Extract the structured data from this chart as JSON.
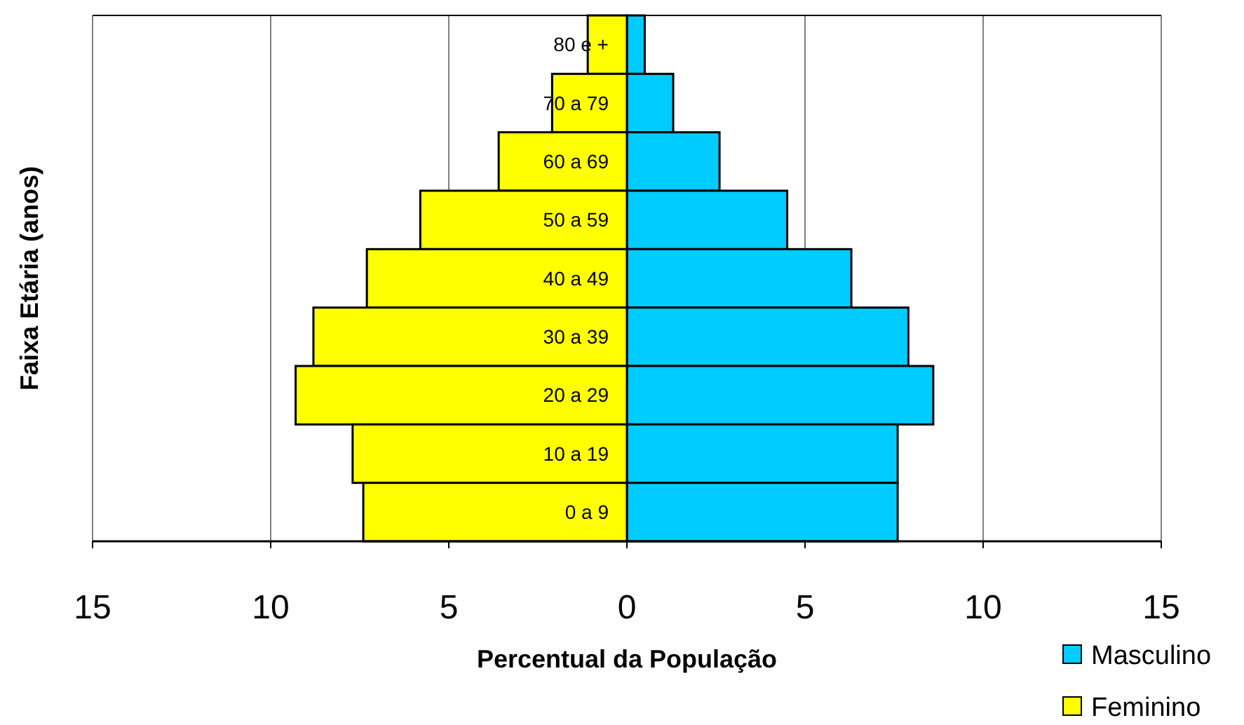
{
  "chart_data": {
    "type": "bar",
    "orientation": "horizontal",
    "stacked": true,
    "categories": [
      "80 e +",
      "70 a 79",
      "60 a 69",
      "50 a 59",
      "40 a 49",
      "30 a 39",
      "20 a 29",
      "10 a 19",
      "0 a 9"
    ],
    "series": [
      {
        "name": "Masculino",
        "color": "#00ccff",
        "values": [
          0.5,
          1.3,
          2.6,
          4.5,
          6.3,
          7.9,
          8.6,
          7.6,
          7.6
        ]
      },
      {
        "name": "Feminino",
        "color": "#ffff00",
        "values": [
          -1.1,
          -2.1,
          -3.6,
          -5.8,
          -7.3,
          -8.8,
          -9.3,
          -7.7,
          -7.4
        ]
      }
    ],
    "xlim": [
      -15,
      15
    ],
    "xticks": [
      {
        "value": -15,
        "label": "15"
      },
      {
        "value": -10,
        "label": "10"
      },
      {
        "value": -5,
        "label": "5"
      },
      0,
      5,
      10,
      15
    ],
    "xlabel": "Percentual da População",
    "ylabel": "Faixa Etária (anos)",
    "grid": "x",
    "legend": "bottom right"
  }
}
